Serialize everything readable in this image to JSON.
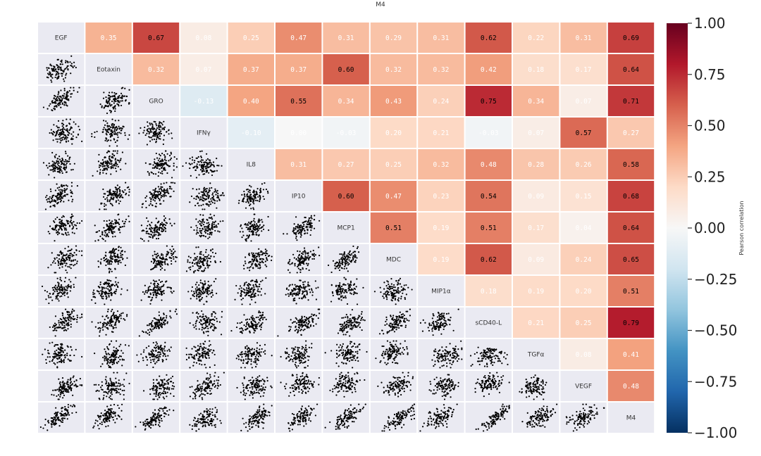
{
  "title": "M4",
  "chart_data": {
    "type": "heatmap",
    "variables": [
      "EGF",
      "Eotaxin",
      "GRO",
      "IFNγ",
      "IL8",
      "IP10",
      "MCP1",
      "MDC",
      "MIP1α",
      "sCD40-L",
      "TGFα",
      "VEGF",
      "M4"
    ],
    "correlations": [
      [
        1,
        0.35,
        0.67,
        0.08,
        0.25,
        0.47,
        0.31,
        0.29,
        0.31,
        0.62,
        0.22,
        0.31,
        0.69
      ],
      [
        0.35,
        1,
        0.32,
        0.07,
        0.37,
        0.37,
        0.6,
        0.32,
        0.32,
        0.42,
        0.18,
        0.17,
        0.64
      ],
      [
        0.67,
        0.32,
        1,
        -0.13,
        0.4,
        0.55,
        0.34,
        0.43,
        0.24,
        0.75,
        0.34,
        0.07,
        0.71
      ],
      [
        0.08,
        0.07,
        -0.13,
        1,
        -0.1,
        0.0,
        -0.03,
        0.2,
        0.21,
        -0.03,
        0.07,
        0.57,
        0.27
      ],
      [
        0.25,
        0.37,
        0.4,
        -0.1,
        1,
        0.31,
        0.27,
        0.25,
        0.32,
        0.48,
        0.28,
        0.26,
        0.58
      ],
      [
        0.47,
        0.37,
        0.55,
        0.0,
        0.31,
        1,
        0.6,
        0.47,
        0.23,
        0.54,
        0.09,
        0.15,
        0.68
      ],
      [
        0.31,
        0.6,
        0.34,
        -0.03,
        0.27,
        0.6,
        1,
        0.51,
        0.19,
        0.51,
        0.17,
        0.04,
        0.64
      ],
      [
        0.29,
        0.32,
        0.43,
        0.2,
        0.25,
        0.47,
        0.51,
        1,
        0.19,
        0.62,
        0.09,
        0.24,
        0.65
      ],
      [
        0.31,
        0.32,
        0.24,
        0.21,
        0.32,
        0.23,
        0.19,
        0.19,
        1,
        0.18,
        0.19,
        0.2,
        0.51
      ],
      [
        0.62,
        0.42,
        0.75,
        -0.03,
        0.48,
        0.54,
        0.51,
        0.62,
        0.18,
        1,
        0.21,
        0.25,
        0.79
      ],
      [
        0.22,
        0.18,
        0.34,
        0.07,
        0.28,
        0.09,
        0.17,
        0.09,
        0.19,
        0.21,
        1,
        0.08,
        0.41
      ],
      [
        0.31,
        0.17,
        0.07,
        0.57,
        0.26,
        0.15,
        0.04,
        0.24,
        0.2,
        0.25,
        0.08,
        1,
        0.48
      ],
      [
        0.69,
        0.64,
        0.71,
        0.27,
        0.58,
        0.68,
        0.64,
        0.65,
        0.51,
        0.79,
        0.41,
        0.48,
        1
      ]
    ],
    "cell_labels": [
      [
        "",
        "0.35",
        "0.67",
        "0.08",
        "0.25",
        "0.47",
        "0.31",
        "0.29",
        "0.31",
        "0.62",
        "0.22",
        "0.31",
        "0.69"
      ],
      [
        "",
        "",
        "0.32",
        "0.07",
        "0.37",
        "0.37",
        "0.60",
        "0.32",
        "0.32",
        "0.42",
        "0.18",
        "0.17",
        "0.64"
      ],
      [
        "",
        "",
        "",
        "-0.13",
        "0.40",
        "0.55",
        "0.34",
        "0.43",
        "0.24",
        "0.75",
        "0.34",
        "0.07",
        "0.71"
      ],
      [
        "",
        "",
        "",
        "",
        "-0.10",
        "0.00",
        "-0.03",
        "0.20",
        "0.21",
        "-0.03",
        "0.07",
        "0.57",
        "0.27"
      ],
      [
        "",
        "",
        "",
        "",
        "",
        "0.31",
        "0.27",
        "0.25",
        "0.32",
        "0.48",
        "0.28",
        "0.26",
        "0.58"
      ],
      [
        "",
        "",
        "",
        "",
        "",
        "",
        "0.60",
        "0.47",
        "0.23",
        "0.54",
        "0.09",
        "0.15",
        "0.68"
      ],
      [
        "",
        "",
        "",
        "",
        "",
        "",
        "",
        "0.51",
        "0.19",
        "0.51",
        "0.17",
        "0.04",
        "0.64"
      ],
      [
        "",
        "",
        "",
        "",
        "",
        "",
        "",
        "",
        "0.19",
        "0.62",
        "0.09",
        "0.24",
        "0.65"
      ],
      [
        "",
        "",
        "",
        "",
        "",
        "",
        "",
        "",
        "",
        "0.18",
        "0.19",
        "0.20",
        "0.51"
      ],
      [
        "",
        "",
        "",
        "",
        "",
        "",
        "",
        "",
        "",
        "",
        "0.21",
        "0.25",
        "0.79"
      ],
      [
        "",
        "",
        "",
        "",
        "",
        "",
        "",
        "",
        "",
        "",
        "",
        "0.08",
        "0.41"
      ],
      [
        "",
        "",
        "",
        "",
        "",
        "",
        "",
        "",
        "",
        "",
        "",
        "",
        "0.48"
      ],
      [
        "",
        "",
        "",
        "",
        "",
        "",
        "",
        "",
        "",
        "",
        "",
        "",
        ""
      ]
    ],
    "upper_triangle": "heatmap cells annotated with Pearson r",
    "diagonal": "variable name",
    "lower_triangle": "scatter plots of raw values",
    "colormap": "RdBu_r",
    "colorbar": {
      "label": "Pearson correlation",
      "vmin": -1.0,
      "vmax": 1.0,
      "ticks": [
        1.0,
        0.75,
        0.5,
        0.25,
        0.0,
        -0.25,
        -0.5,
        -0.75,
        -1.0
      ],
      "tick_labels": [
        "1.00",
        "0.75",
        "0.50",
        "0.25",
        "0.00",
        "−0.25",
        "−0.50",
        "−0.75",
        "−1.00"
      ]
    },
    "scatter_point_color": "#000000",
    "diagonal_cell_color": "#eaeaf2"
  }
}
